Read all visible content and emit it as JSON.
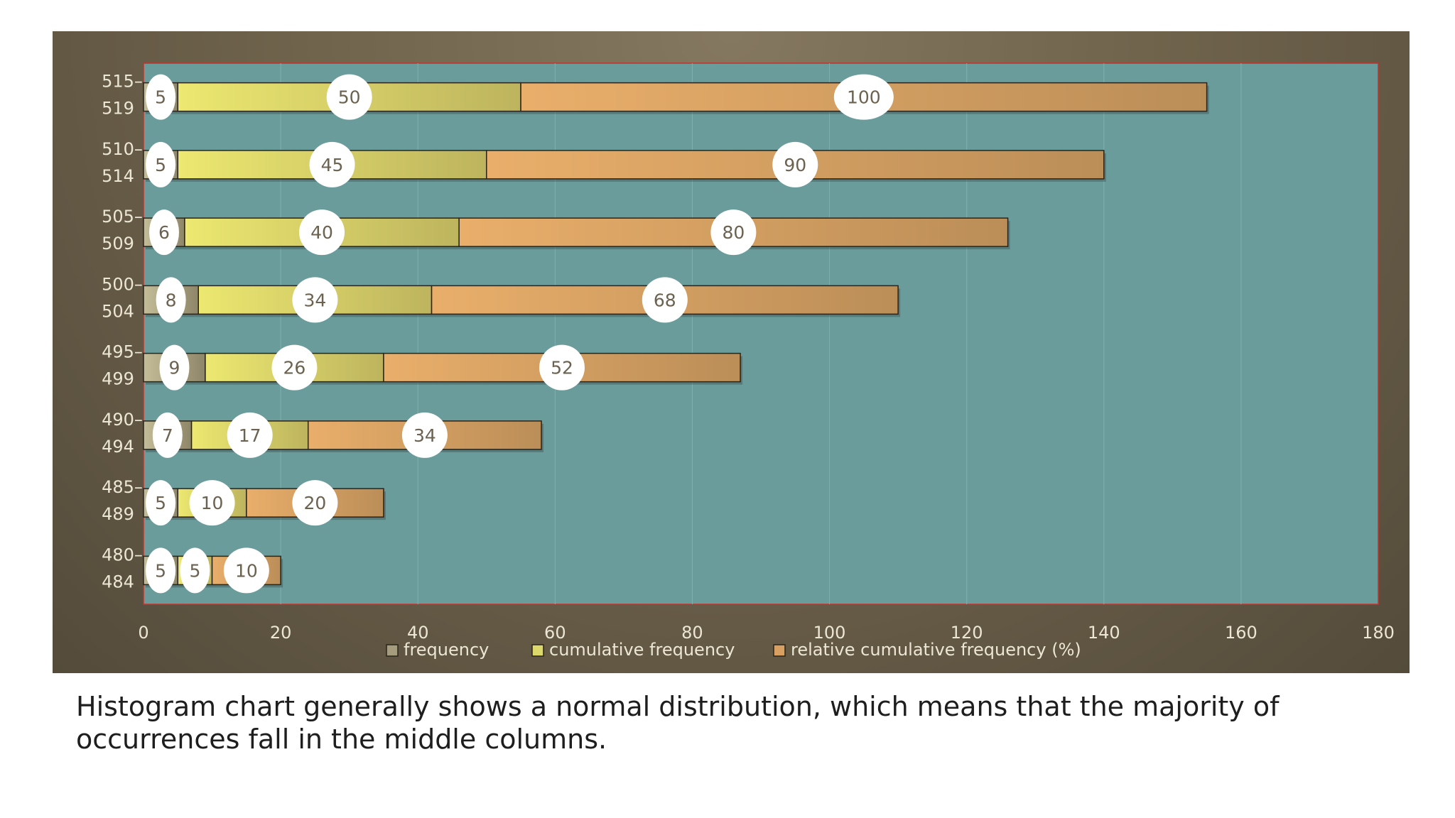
{
  "caption": "Histogram chart generally shows a normal distribution, which means that the majority of occurrences fall in the middle columns.",
  "chart_data": {
    "type": "bar",
    "orientation": "horizontal",
    "stacked": true,
    "categories": [
      "480–\n484",
      "485–\n489",
      "490–\n494",
      "495–\n499",
      "500–\n504",
      "505–\n509",
      "510–\n514",
      "515–\n519"
    ],
    "series": [
      {
        "name": "frequency",
        "color": "#a49c7c",
        "values": [
          5,
          5,
          7,
          9,
          8,
          6,
          5,
          5
        ]
      },
      {
        "name": "cumulative frequency",
        "color": "#dcd86a",
        "values": [
          5,
          10,
          17,
          26,
          34,
          40,
          45,
          50
        ]
      },
      {
        "name": "relative cumulative frequency (%)",
        "color": "#d9a062",
        "values": [
          10,
          20,
          34,
          52,
          68,
          80,
          90,
          100
        ]
      }
    ],
    "xlim": [
      0,
      180
    ],
    "xticks": [
      "0",
      "20",
      "40",
      "60",
      "80",
      "100",
      "120",
      "140",
      "160",
      "180"
    ],
    "plot_background": "#6a9c9b",
    "grid": true,
    "legend_position": "bottom"
  }
}
